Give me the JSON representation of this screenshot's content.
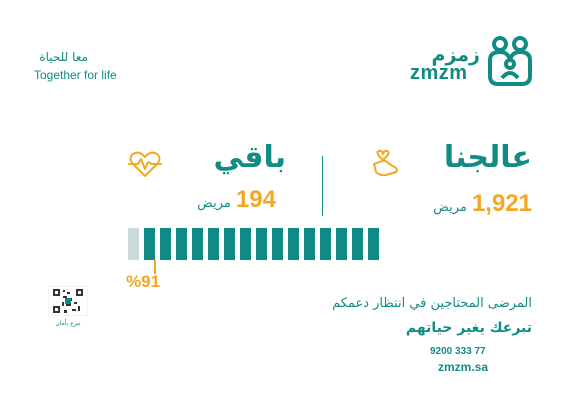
{
  "tagline": {
    "ar": "معا للحياة",
    "en": "Together for life"
  },
  "logo": {
    "ar": "زمزم",
    "en": "zmzm",
    "icon": "family-hearts-icon"
  },
  "stats": {
    "treated": {
      "title": "عالجنا",
      "count": "1,921",
      "unit": "مريض",
      "icon": "hand-heart-icon"
    },
    "remaining": {
      "title": "باقي",
      "count": "194",
      "unit": "مريض",
      "icon": "heartbeat-icon"
    }
  },
  "progress": {
    "percent_label": "%91",
    "fraction": 0.91,
    "segments": 16,
    "filled": 15
  },
  "qr": {
    "caption": "تبرع بأمان",
    "icon": "qr-code-icon"
  },
  "cta": {
    "line1": "المرضى المحتاجين في انتظار دعمكم",
    "line2": "تبرعك يغير حياتهم"
  },
  "contact": {
    "phone": "9200 333 77",
    "website": "zmzm.sa"
  },
  "colors": {
    "primary": "#118C84",
    "accent": "#F5A623",
    "empty": "#C9D9DC"
  }
}
